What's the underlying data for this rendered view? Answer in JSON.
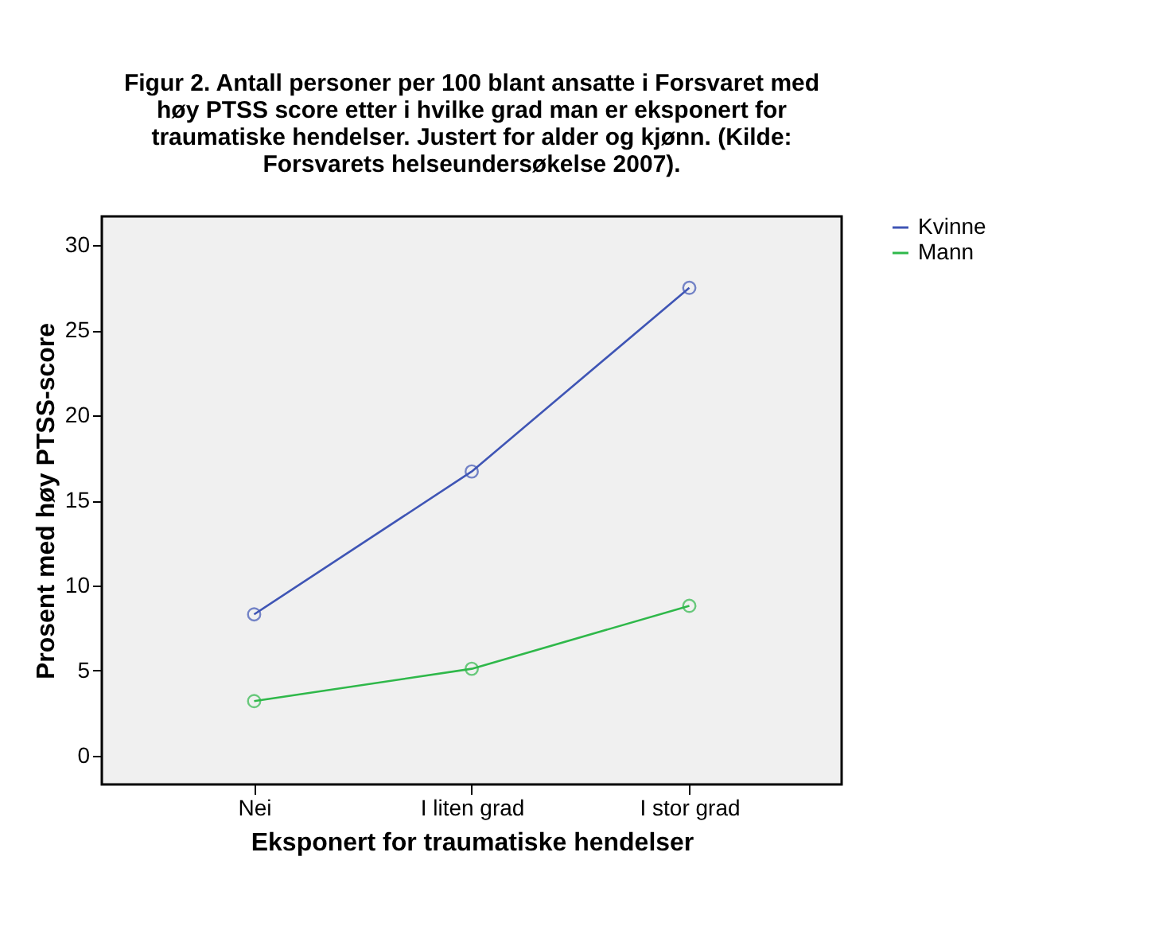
{
  "chart_data": {
    "type": "line",
    "title": "Figur 2. Antall personer per 100 blant ansatte i Forsvaret med\nhøy PTSS score etter i hvilke grad man er eksponert for\ntraumatiske hendelser. Justert for alder og kjønn. (Kilde:\nForsvarets helseundersøkelse 2007).",
    "xlabel": "Eksponert for traumatiske hendelser",
    "ylabel": "Prosent med høy PTSS-score",
    "categories": [
      "Nei",
      "I liten grad",
      "I stor grad"
    ],
    "series": [
      {
        "name": "Kvinne",
        "color": "#3f55b5",
        "values": [
          8.3,
          16.7,
          27.5
        ]
      },
      {
        "name": "Mann",
        "color": "#2fb84a",
        "values": [
          3.2,
          5.1,
          8.8
        ]
      }
    ],
    "ylim": [
      -1.7,
      31.7
    ],
    "yticks": [
      0,
      5,
      10,
      15,
      20,
      25,
      30
    ],
    "grid": false,
    "legend": "top right",
    "marker": "circle",
    "line_style": "solid"
  }
}
